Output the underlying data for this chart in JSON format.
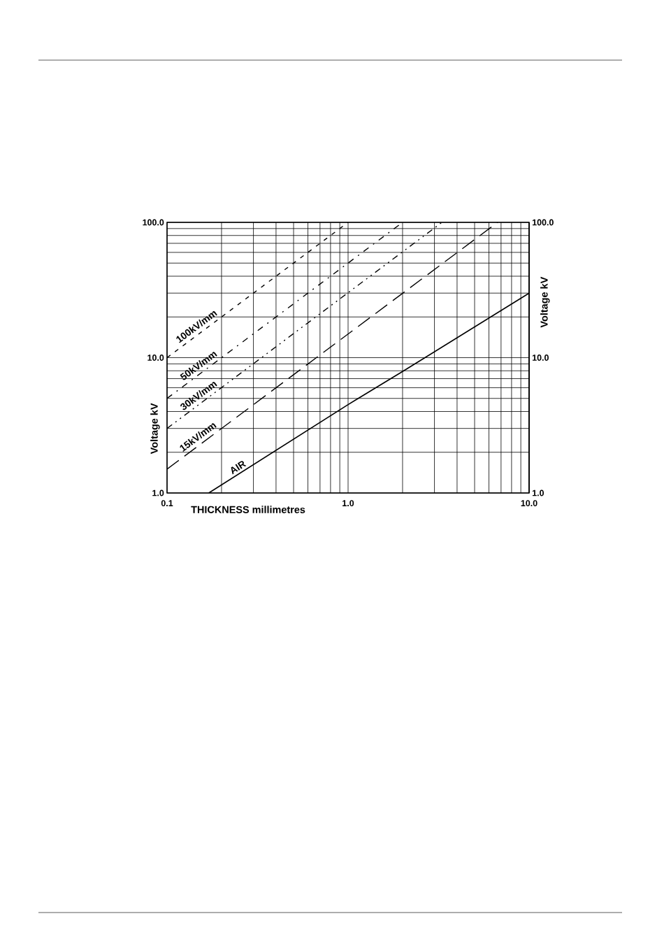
{
  "chart_data": {
    "type": "line",
    "xlabel": "THICKNESS millimetres",
    "ylabel": "Voltage kV",
    "y2label": "Voltage kV",
    "log": "xy",
    "grid": true,
    "xlim": [
      0.1,
      10
    ],
    "xticks": [
      0.1,
      {
        "value": 1,
        "label": "1.0"
      },
      {
        "value": 10,
        "label": "10.0"
      }
    ],
    "ylim": [
      1,
      100
    ],
    "yticks": [
      {
        "value": 1,
        "label": "1.0"
      },
      {
        "value": 10,
        "label": "10.0"
      },
      {
        "value": 100,
        "label": "100.0"
      }
    ],
    "series": [
      {
        "name": "100kV/mm",
        "color": "#000000",
        "line_style": "dashed",
        "x": [
          0.1,
          1.0
        ],
        "values": [
          10,
          100
        ]
      },
      {
        "name": "50kV/mm",
        "color": "#000000",
        "line_style": "dashdot",
        "x": [
          0.1,
          2.0
        ],
        "values": [
          5,
          100
        ]
      },
      {
        "name": "30kV/mm",
        "color": "#000000",
        "line_style": "dashdotdot",
        "x": [
          0.1,
          3.3
        ],
        "values": [
          3,
          100
        ]
      },
      {
        "name": "15kV/mm",
        "color": "#000000",
        "line_style": "long dashed",
        "x": [
          0.1,
          6.7
        ],
        "values": [
          1.5,
          100
        ]
      },
      {
        "name": "AIR",
        "color": "#000000",
        "line_style": "solid",
        "x": [
          0.17,
          1.0,
          2.0,
          10.0
        ],
        "values": [
          1.0,
          4.5,
          7.9,
          30
        ]
      }
    ]
  }
}
